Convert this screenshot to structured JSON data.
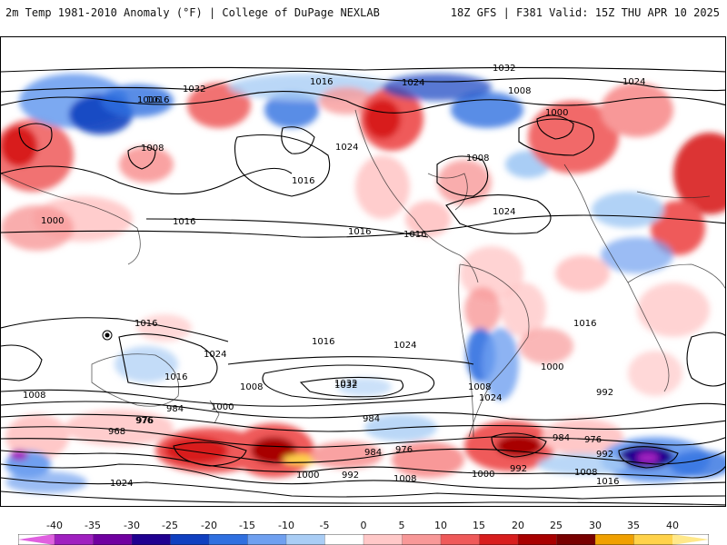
{
  "header": {
    "title": "2m Temp 1981-2010 Anomaly (°F) | College of DuPage NEXLAB",
    "run_info": "18Z GFS | F381 Valid: 15Z THU APR 10 2025"
  },
  "colorbar": {
    "ticks": [
      "-40",
      "-35",
      "-30",
      "-25",
      "-20",
      "-15",
      "-10",
      "-5",
      "0",
      "5",
      "10",
      "15",
      "20",
      "25",
      "30",
      "35",
      "40"
    ],
    "colors": [
      "#e060e0",
      "#a020c0",
      "#7000a0",
      "#200090",
      "#1040c0",
      "#3070e0",
      "#6fa0f0",
      "#a9cdf5",
      "#ffffff",
      "#ffc8c8",
      "#f89898",
      "#ef5a5a",
      "#d81e1e",
      "#a80000",
      "#780000",
      "#f0a000",
      "#ffd24a",
      "#ffe88a"
    ]
  },
  "map": {
    "isobar_labels": [
      "1032",
      "1024",
      "1016",
      "1008",
      "1000",
      "992",
      "984",
      "976",
      "968",
      "1032",
      "1024",
      "1016",
      "1008",
      "1000",
      "1016",
      "1024",
      "1016",
      "1008",
      "1016",
      "1024",
      "1016",
      "1032",
      "1024",
      "1016",
      "1008",
      "1000",
      "992",
      "984",
      "976",
      "1016",
      "1008",
      "1000",
      "1008",
      "1016",
      "1024",
      "1032",
      "1016",
      "1016",
      "1024",
      "1008",
      "1000",
      "992",
      "984",
      "976",
      "1016",
      "1008",
      "1000",
      "992",
      "984",
      "976",
      "1024"
    ]
  }
}
